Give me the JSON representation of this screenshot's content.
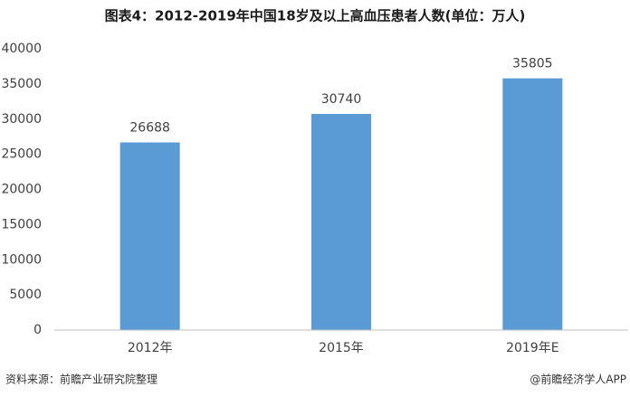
{
  "chart_data": {
    "type": "bar",
    "title": "图表4：2012-2019年中国18岁及以上高血压患者人数(单位：万人)",
    "categories": [
      "2012年",
      "2015年",
      "2019年E"
    ],
    "values": [
      26688,
      30740,
      35805
    ],
    "color": "#5b9bd5",
    "ylim": [
      0,
      40000
    ],
    "yticks": [
      0,
      5000,
      10000,
      15000,
      20000,
      25000,
      30000,
      35000,
      40000
    ],
    "grid": false
  },
  "footer": {
    "source": "资料来源：前瞻产业研究院整理",
    "credit": "@前瞻经济学人APP"
  }
}
